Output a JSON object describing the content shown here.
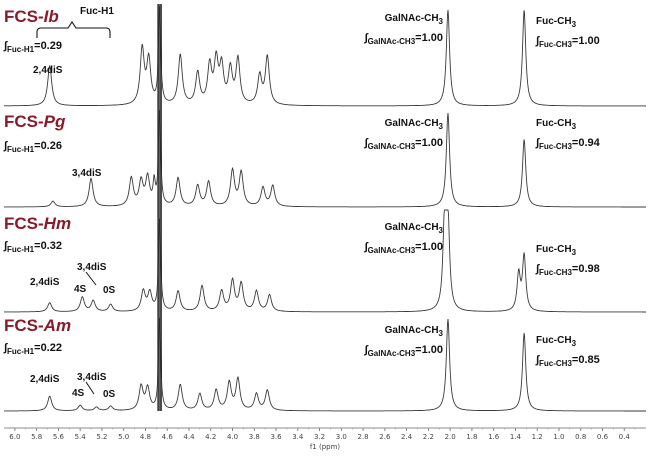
{
  "chart_data": {
    "type": "line",
    "x_unit_label": "f1 (ppm)",
    "xlim": [
      6.1,
      0.2
    ],
    "x_ticks": [
      "6.0",
      "5.8",
      "5.6",
      "5.4",
      "5.2",
      "5.0",
      "4.8",
      "4.6",
      "4.4",
      "4.2",
      "4.0",
      "3.8",
      "3.6",
      "3.4",
      "3.2",
      "3.0",
      "2.8",
      "2.6",
      "2.4",
      "2.2",
      "2.0",
      "1.8",
      "1.6",
      "1.4",
      "1.2",
      "1.0",
      "0.8",
      "0.6",
      "0.4"
    ],
    "series": [
      {
        "name": "FCS-Ib",
        "title_prefix": "FCS-",
        "title_species": "Ib",
        "fuc_h1_integral": "0.29",
        "galnac_integral": "1.00",
        "fuc_ch3_integral": "1.00",
        "peak_labels": [
          "2,4diS"
        ],
        "bracket_label": "Fuc-H1",
        "peaks": [
          {
            "x": 5.68,
            "h": 0.42
          },
          {
            "x": 4.83,
            "h": 0.58
          },
          {
            "x": 4.77,
            "h": 0.46
          },
          {
            "x": 4.67,
            "h": 1.0
          },
          {
            "x": 4.48,
            "h": 0.52
          },
          {
            "x": 4.32,
            "h": 0.33
          },
          {
            "x": 4.21,
            "h": 0.4
          },
          {
            "x": 4.15,
            "h": 0.44
          },
          {
            "x": 4.1,
            "h": 0.38
          },
          {
            "x": 4.02,
            "h": 0.36
          },
          {
            "x": 3.95,
            "h": 0.47
          },
          {
            "x": 3.75,
            "h": 0.3
          },
          {
            "x": 3.68,
            "h": 0.5
          },
          {
            "x": 2.02,
            "h": 1.0
          },
          {
            "x": 1.32,
            "h": 1.0
          }
        ]
      },
      {
        "name": "FCS-Pg",
        "title_prefix": "FCS-",
        "title_species": "Pg",
        "fuc_h1_integral": "0.26",
        "galnac_integral": "1.00",
        "fuc_ch3_integral": "0.94",
        "peak_labels": [
          "3,4diS"
        ],
        "peaks": [
          {
            "x": 5.65,
            "h": 0.06
          },
          {
            "x": 5.3,
            "h": 0.3
          },
          {
            "x": 4.93,
            "h": 0.3
          },
          {
            "x": 4.84,
            "h": 0.26
          },
          {
            "x": 4.78,
            "h": 0.3
          },
          {
            "x": 4.72,
            "h": 0.24
          },
          {
            "x": 4.67,
            "h": 1.0
          },
          {
            "x": 4.5,
            "h": 0.3
          },
          {
            "x": 4.32,
            "h": 0.22
          },
          {
            "x": 4.22,
            "h": 0.26
          },
          {
            "x": 4.0,
            "h": 0.38
          },
          {
            "x": 3.92,
            "h": 0.36
          },
          {
            "x": 3.72,
            "h": 0.2
          },
          {
            "x": 3.63,
            "h": 0.22
          },
          {
            "x": 2.02,
            "h": 1.0
          },
          {
            "x": 1.32,
            "h": 0.72
          }
        ]
      },
      {
        "name": "FCS-Hm",
        "title_prefix": "FCS-",
        "title_species": "Hm",
        "fuc_h1_integral": "0.32",
        "galnac_integral": "1.00",
        "fuc_ch3_integral": "0.98",
        "peak_labels": [
          "2,4diS",
          "3,4diS",
          "4S",
          "0S"
        ],
        "peaks": [
          {
            "x": 5.68,
            "h": 0.1
          },
          {
            "x": 5.38,
            "h": 0.16
          },
          {
            "x": 5.28,
            "h": 0.12
          },
          {
            "x": 5.12,
            "h": 0.08
          },
          {
            "x": 4.82,
            "h": 0.22
          },
          {
            "x": 4.76,
            "h": 0.2
          },
          {
            "x": 4.67,
            "h": 1.0
          },
          {
            "x": 4.5,
            "h": 0.22
          },
          {
            "x": 4.28,
            "h": 0.28
          },
          {
            "x": 4.1,
            "h": 0.22
          },
          {
            "x": 4.0,
            "h": 0.33
          },
          {
            "x": 3.92,
            "h": 0.3
          },
          {
            "x": 3.78,
            "h": 0.22
          },
          {
            "x": 3.66,
            "h": 0.18
          },
          {
            "x": 2.05,
            "h": 1.0
          },
          {
            "x": 2.02,
            "h": 0.92
          },
          {
            "x": 1.37,
            "h": 0.4
          },
          {
            "x": 1.32,
            "h": 0.6
          }
        ]
      },
      {
        "name": "FCS-Am",
        "title_prefix": "FCS-",
        "title_species": "Am",
        "fuc_h1_integral": "0.22",
        "galnac_integral": "1.00",
        "fuc_ch3_integral": "0.85",
        "peak_labels": [
          "2,4diS",
          "3,4diS",
          "4S",
          "0S"
        ],
        "peaks": [
          {
            "x": 5.68,
            "h": 0.16
          },
          {
            "x": 5.4,
            "h": 0.06
          },
          {
            "x": 5.25,
            "h": 0.04
          },
          {
            "x": 5.12,
            "h": 0.05
          },
          {
            "x": 4.84,
            "h": 0.26
          },
          {
            "x": 4.78,
            "h": 0.24
          },
          {
            "x": 4.67,
            "h": 1.0
          },
          {
            "x": 4.48,
            "h": 0.28
          },
          {
            "x": 4.3,
            "h": 0.18
          },
          {
            "x": 4.15,
            "h": 0.22
          },
          {
            "x": 4.03,
            "h": 0.3
          },
          {
            "x": 3.95,
            "h": 0.34
          },
          {
            "x": 3.78,
            "h": 0.18
          },
          {
            "x": 3.68,
            "h": 0.22
          },
          {
            "x": 2.02,
            "h": 1.0
          },
          {
            "x": 1.32,
            "h": 0.85
          }
        ]
      }
    ]
  },
  "labels": {
    "fuc_h1": "Fuc-H1",
    "galnac_ch3": "GalNAc-CH",
    "fuc_ch3": "Fuc-CH",
    "three": "3",
    "integral": "∫",
    "int_sub_fuch1": "Fuc-H1",
    "int_sub_galnac": "GalNAc-CH",
    "int_sub_fucch3": "Fuc-CH"
  }
}
